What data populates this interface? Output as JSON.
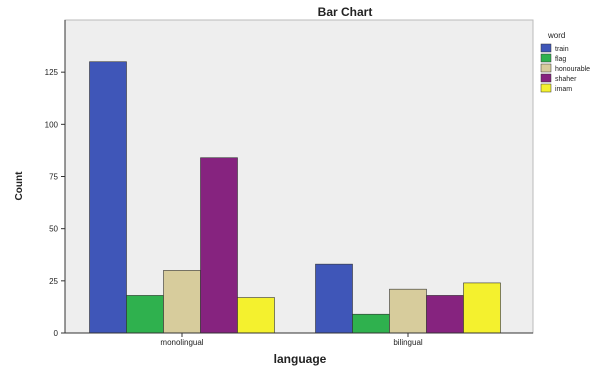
{
  "chart_data": {
    "type": "bar",
    "title": "Bar Chart",
    "xlabel": "language",
    "ylabel": "Count",
    "categories": [
      "monolingual",
      "bilingual"
    ],
    "ylim": [
      0,
      150
    ],
    "yticks": [
      0,
      25,
      50,
      75,
      100,
      125
    ],
    "ytick_labels": [
      "0",
      "25",
      "50",
      "75",
      "100",
      "125"
    ],
    "grid": false,
    "legend_position": "right",
    "legend_title": "word",
    "series": [
      {
        "name": "train",
        "color": "#3f56b8",
        "values": [
          130,
          33
        ]
      },
      {
        "name": "flag",
        "color": "#2fb14e",
        "values": [
          18,
          9
        ]
      },
      {
        "name": "honourable",
        "color": "#d7cc9c",
        "values": [
          30,
          21
        ]
      },
      {
        "name": "shaher",
        "color": "#86237f",
        "values": [
          84,
          18
        ]
      },
      {
        "name": "imam",
        "color": "#f4f12e",
        "values": [
          17,
          24
        ]
      }
    ],
    "colors": {
      "plot_background": "#eeeeee",
      "axis": "#333333",
      "text": "#222222"
    }
  }
}
